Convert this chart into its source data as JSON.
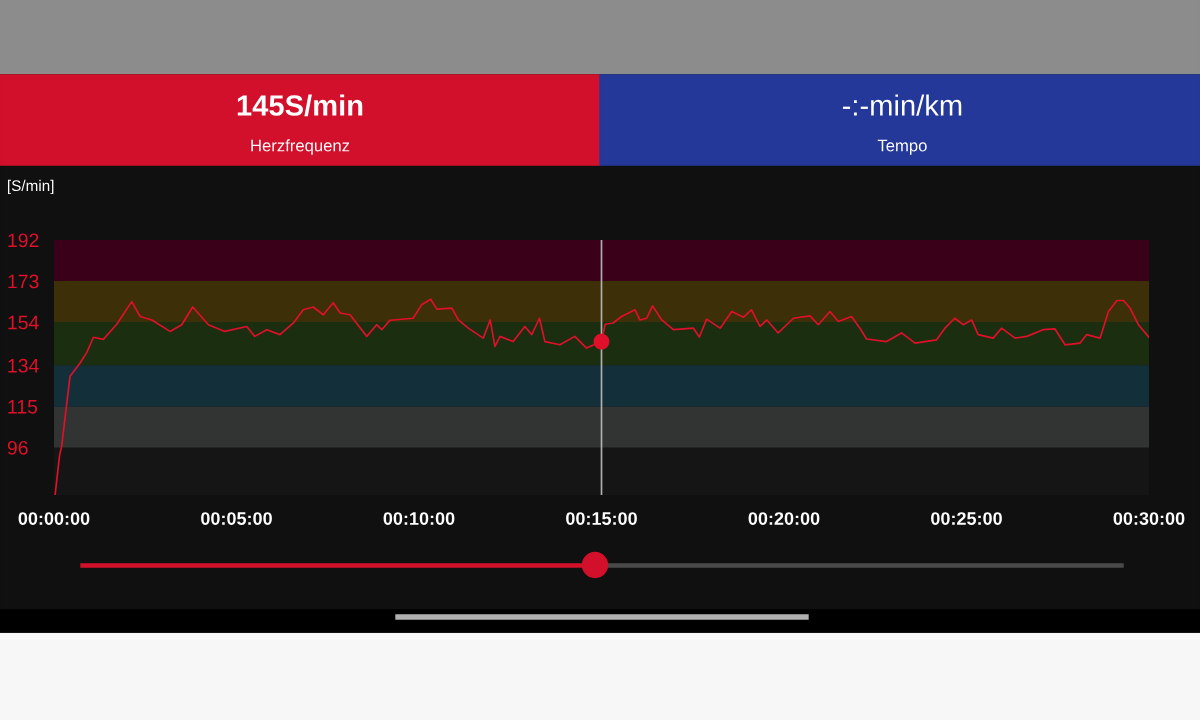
{
  "chart_data": {
    "type": "line",
    "ylabel": "[S/min]",
    "annotations": [
      "145S/min",
      "Herzfrequenz",
      "-:-min/km",
      "Tempo"
    ],
    "series": [
      {
        "color": "#e0102a",
        "x": [
          0.03,
          0.15,
          0.21,
          0.44,
          0.71,
          0.9,
          1.08,
          1.35,
          1.72,
          2.13,
          2.36,
          2.68,
          3.18,
          3.5,
          3.8,
          4.23,
          4.68,
          5.28,
          5.5,
          5.83,
          6.19,
          6.56,
          6.83,
          7.1,
          7.38,
          7.65,
          7.84,
          8.11,
          8.57,
          8.84,
          8.98,
          9.2,
          9.3,
          9.84,
          10.07,
          10.32,
          10.49,
          10.9,
          11.08,
          11.35,
          11.76,
          11.95,
          12.08,
          12.22,
          12.58,
          12.9,
          13.09,
          13.3,
          13.45,
          13.86,
          14.27,
          14.59,
          15.0,
          15.1,
          15.32,
          15.55,
          15.92,
          16.05,
          16.24,
          16.4,
          16.65,
          16.97,
          17.52,
          17.68,
          17.88,
          18.25,
          18.57,
          18.89,
          19.11,
          19.34,
          19.53,
          19.84,
          20.26,
          20.71,
          20.94,
          21.26,
          21.49,
          21.85,
          22.08,
          22.26,
          22.81,
          23.22,
          23.59,
          24.18,
          24.41,
          24.68,
          24.91,
          25.14,
          25.32,
          25.73,
          25.96,
          26.33,
          26.65,
          27.1,
          27.42,
          27.7,
          28.11,
          28.29,
          28.66,
          28.89,
          29.12,
          29.3,
          29.48,
          29.71,
          30.0
        ],
        "values": [
          74,
          92,
          96.6,
          129,
          135,
          140,
          147,
          146,
          153,
          163.5,
          156.6,
          155,
          149.7,
          152.8,
          161,
          152.8,
          149.7,
          152,
          147.4,
          150.5,
          148.2,
          153.6,
          159.7,
          161,
          157.4,
          163,
          158.2,
          157.4,
          147.4,
          152.8,
          150.5,
          154.8,
          155,
          155.8,
          162,
          164.6,
          160,
          160.5,
          155,
          151.2,
          146.6,
          155,
          142.8,
          147.4,
          145,
          152,
          148.2,
          155.8,
          145,
          143.5,
          147.4,
          142,
          145,
          153,
          153.6,
          156.6,
          159.7,
          155,
          155.8,
          161.5,
          155,
          150.5,
          151.2,
          147.1,
          155.4,
          151.2,
          158.9,
          156.3,
          159.7,
          152,
          155,
          149,
          155.8,
          156.9,
          152.8,
          158.9,
          154.3,
          156.6,
          151.2,
          146.2,
          145,
          149,
          144.3,
          145.8,
          151.2,
          155.8,
          152.8,
          155,
          148.2,
          146.6,
          151.2,
          146.6,
          147.4,
          150.5,
          150.9,
          143.5,
          144.3,
          148.2,
          146.6,
          158.9,
          164,
          164,
          160.5,
          152.8,
          147
        ]
      },
      {
        "type": "scatter",
        "marker": "circle",
        "color": "#e0102a",
        "x": [
          15.0
        ],
        "values": [
          145
        ]
      }
    ],
    "xlim": [
      0,
      30
    ],
    "ylim": [
      74,
      192
    ],
    "xticks": [
      {
        "value": 0,
        "label": "00:00:00"
      },
      {
        "value": 5,
        "label": "00:05:00"
      },
      {
        "value": 10,
        "label": "00:10:00"
      },
      {
        "value": 15,
        "label": "00:15:00"
      },
      {
        "value": 20,
        "label": "00:20:00"
      },
      {
        "value": 25,
        "label": "00:25:00"
      },
      {
        "value": 30,
        "label": "00:30:00"
      }
    ],
    "yticks": [
      96,
      115,
      134,
      154,
      173,
      192
    ],
    "bands": [
      {
        "axis": "y",
        "from": 96,
        "to": 115,
        "color": "#323433"
      },
      {
        "axis": "y",
        "from": 115,
        "to": 134,
        "color": "#13303a"
      },
      {
        "axis": "y",
        "from": 134,
        "to": 154,
        "color": "#1b2e10"
      },
      {
        "axis": "y",
        "from": 154,
        "to": 173,
        "color": "#3d2f07"
      },
      {
        "axis": "y",
        "from": 173,
        "to": 192,
        "color": "#3a0019"
      }
    ],
    "ref_lines": [
      {
        "axis": "x",
        "value": 15,
        "color": "#b0b0b0"
      }
    ],
    "line_style": "solid",
    "grid": false,
    "legend": false
  }
}
